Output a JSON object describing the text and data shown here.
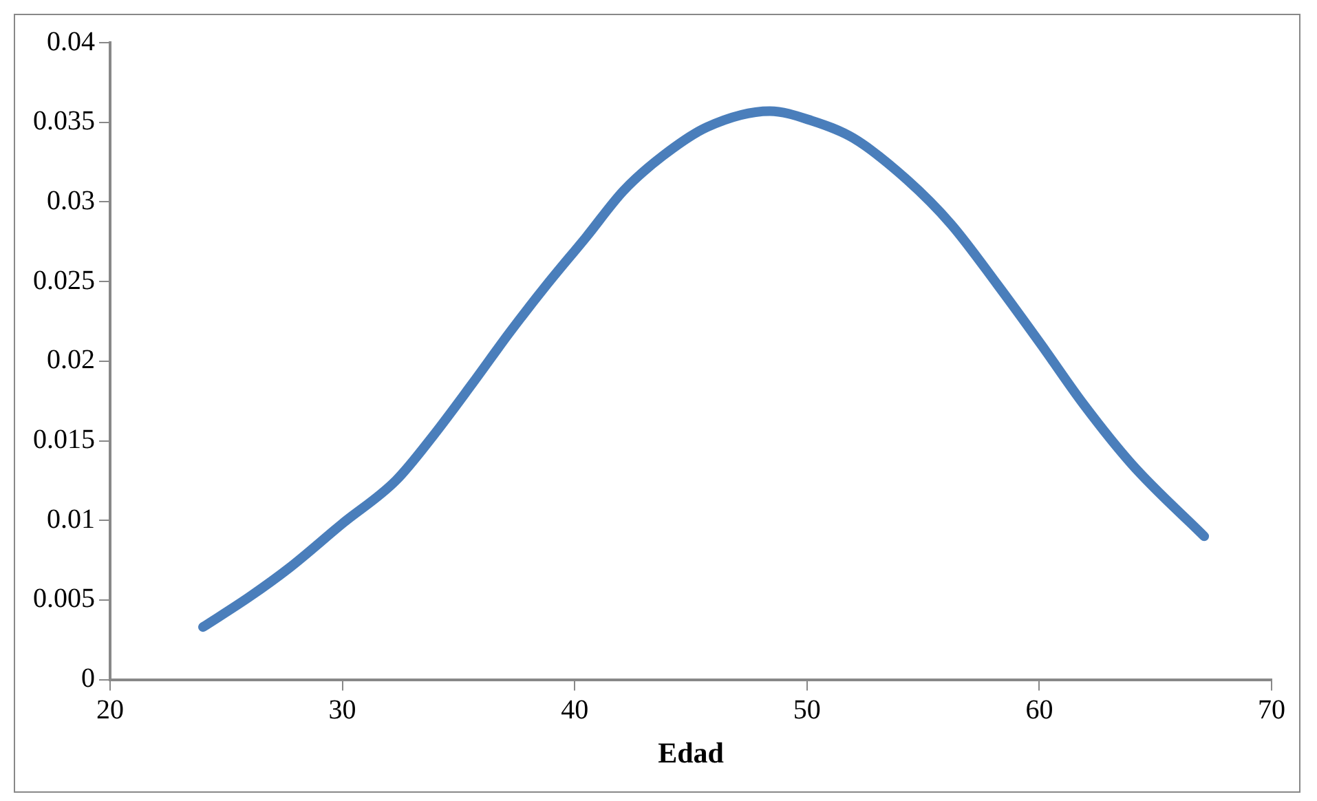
{
  "chart_data": {
    "type": "line",
    "xlabel": "Edad",
    "xlim": [
      20,
      70
    ],
    "xticks": [
      20,
      30,
      40,
      50,
      60,
      70
    ],
    "ylim": [
      0,
      0.04
    ],
    "yticks": [
      0,
      0.005,
      0.01,
      0.015,
      0.02,
      0.025,
      0.03,
      0.035,
      0.04
    ],
    "grid": false,
    "legend": false,
    "marker": "none",
    "line_style": "solid",
    "series": [
      {
        "color": "#4a7ebb",
        "x": [
          24.0,
          26.0,
          27.7,
          30.0,
          32.3,
          33.9,
          35.6,
          37.2,
          38.8,
          40.5,
          42.1,
          43.8,
          45.7,
          48.4,
          50.2,
          52.0,
          54.3,
          56.2,
          58.2,
          60.1,
          61.9,
          64.0,
          67.1
        ],
        "values": [
          0.0033,
          0.0052,
          0.007,
          0.0098,
          0.0125,
          0.0153,
          0.0186,
          0.0218,
          0.0248,
          0.0278,
          0.0307,
          0.0329,
          0.0347,
          0.0357,
          0.0351,
          0.034,
          0.0314,
          0.0286,
          0.0248,
          0.021,
          0.0173,
          0.0135,
          0.009
        ]
      }
    ]
  }
}
